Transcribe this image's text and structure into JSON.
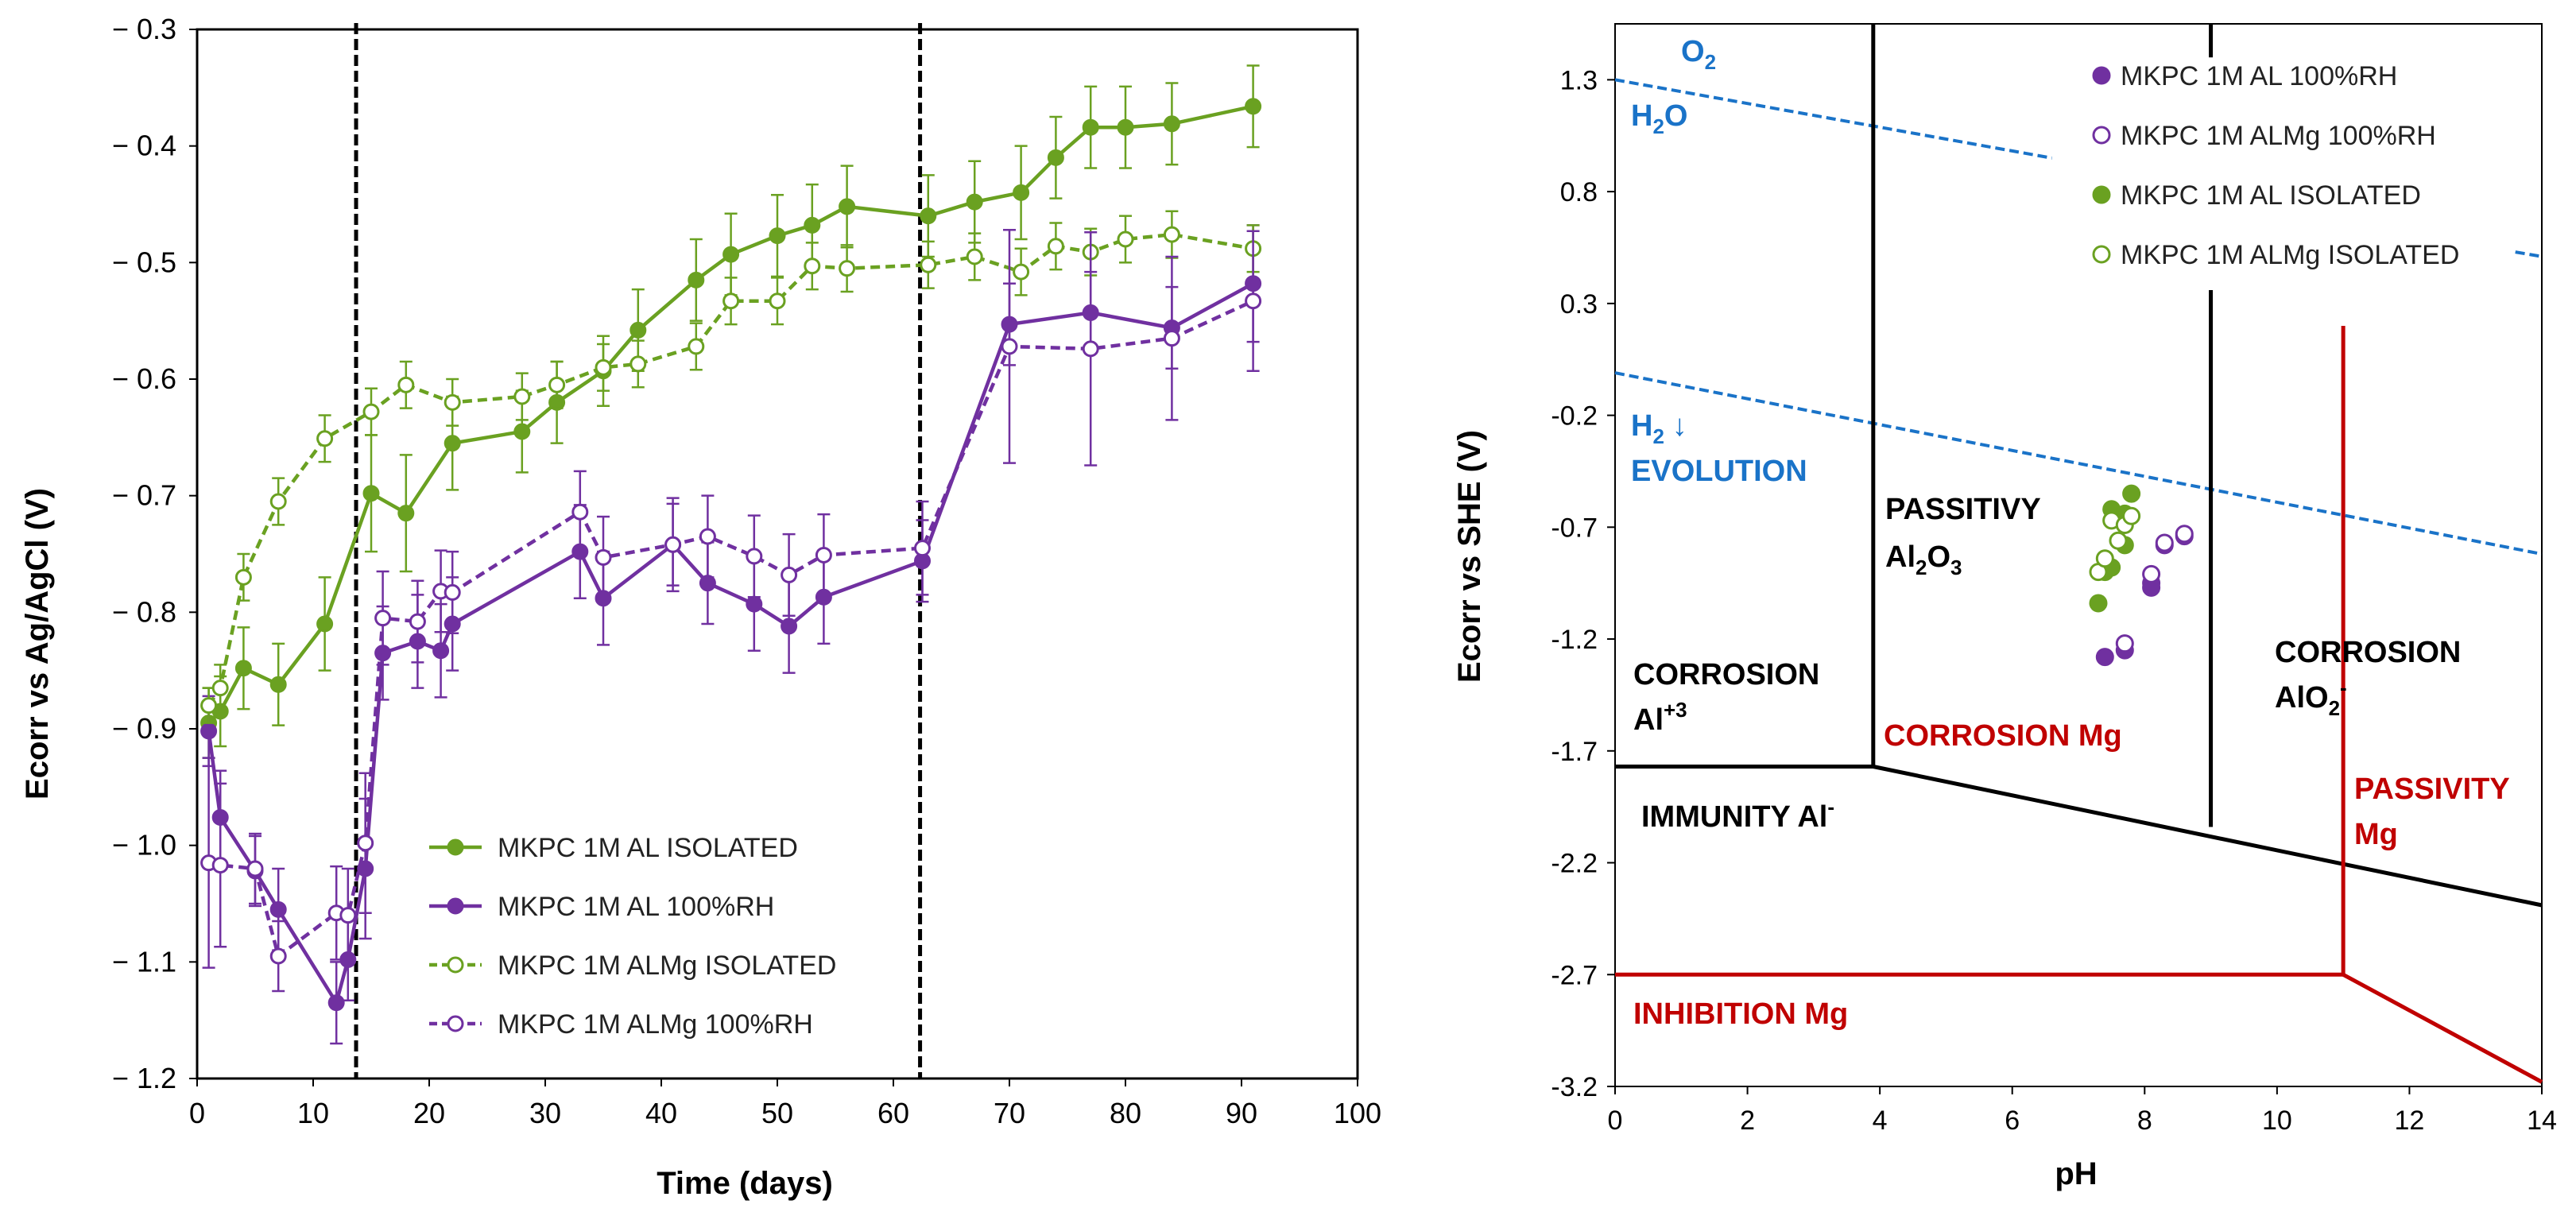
{
  "chart_data": [
    {
      "type": "line",
      "xlabel": "Time (days)",
      "ylabel": "Ecorr vs Ag/AgCl (V)",
      "xlim": [
        0,
        100
      ],
      "ylim": [
        -1.2,
        -0.3
      ],
      "x_ticks": [
        0,
        10,
        20,
        30,
        40,
        50,
        60,
        70,
        80,
        90,
        100
      ],
      "x_tick_labels": [
        "0",
        "10",
        "20",
        "30",
        "40",
        "50",
        "60",
        "70",
        "80",
        "90",
        "100"
      ],
      "y_ticks": [
        -0.3,
        -0.4,
        -0.5,
        -0.6,
        -0.7,
        -0.8,
        -0.9,
        -1.0,
        -1.1,
        -1.2
      ],
      "y_tick_labels": [
        "− 0.3",
        "− 0.4",
        "− 0.5",
        "− 0.6",
        "− 0.7",
        "− 0.8",
        "− 0.9",
        "− 1.0",
        "− 1.1",
        "− 1.2"
      ],
      "vertical_dashed_lines": [
        13.7,
        62.3
      ],
      "series": [
        {
          "name": "MKPC 1M AL ISOLATED",
          "color": "#6aa121",
          "marker": "filled",
          "line": "solid",
          "x": [
            1,
            2,
            4,
            7,
            11,
            15,
            18,
            22,
            28,
            31,
            35,
            38,
            43,
            46,
            50,
            53,
            56,
            63,
            67,
            71,
            74,
            77,
            80,
            84,
            91
          ],
          "y": [
            -0.895,
            -0.885,
            -0.848,
            -0.862,
            -0.81,
            -0.698,
            -0.715,
            -0.655,
            -0.645,
            -0.62,
            -0.593,
            -0.558,
            -0.515,
            -0.493,
            -0.477,
            -0.468,
            -0.452,
            -0.46,
            -0.448,
            -0.44,
            -0.41,
            -0.384,
            -0.384,
            -0.381,
            -0.366
          ],
          "err": [
            0.03,
            0.03,
            0.035,
            0.035,
            0.04,
            0.05,
            0.05,
            0.04,
            0.035,
            0.035,
            0.03,
            0.035,
            0.035,
            0.035,
            0.035,
            0.035,
            0.035,
            0.035,
            0.035,
            0.04,
            0.035,
            0.035,
            0.035,
            0.035,
            0.035
          ]
        },
        {
          "name": "MKPC 1M AL 100%RH",
          "color": "#7030a0",
          "marker": "filled",
          "line": "solid",
          "x": [
            1,
            2,
            5,
            7,
            12,
            13,
            14.5,
            16,
            19,
            21,
            22,
            33,
            35,
            41,
            44,
            48,
            51,
            54,
            62.5,
            70,
            77,
            84,
            91
          ],
          "y": [
            -0.902,
            -0.976,
            -1.022,
            -1.055,
            -1.135,
            -1.098,
            -1.02,
            -0.835,
            -0.825,
            -0.833,
            -0.81,
            -0.748,
            -0.788,
            -0.742,
            -0.775,
            -0.793,
            -0.812,
            -0.787,
            -0.756,
            -0.553,
            -0.543,
            -0.556,
            -0.518
          ],
          "err": [
            0.03,
            0.04,
            0.03,
            0.035,
            0.035,
            0.035,
            0.06,
            0.04,
            0.04,
            0.04,
            0.04,
            0.04,
            0.04,
            0.04,
            0.035,
            0.04,
            0.04,
            0.04,
            0.035,
            0.035,
            0.035,
            0.035,
            0.05
          ]
        },
        {
          "name": "MKPC 1M ALMg ISOLATED",
          "color": "#6aa121",
          "marker": "open",
          "line": "dashed",
          "x": [
            1,
            2,
            4,
            7,
            11,
            15,
            18,
            22,
            28,
            31,
            35,
            38,
            43,
            46,
            50,
            53,
            56,
            63,
            67,
            71,
            74,
            77,
            80,
            84,
            91
          ],
          "y": [
            -0.88,
            -0.865,
            -0.77,
            -0.705,
            -0.651,
            -0.628,
            -0.605,
            -0.62,
            -0.615,
            -0.605,
            -0.59,
            -0.587,
            -0.572,
            -0.533,
            -0.533,
            -0.503,
            -0.505,
            -0.502,
            -0.495,
            -0.508,
            -0.486,
            -0.491,
            -0.48,
            -0.476,
            -0.488
          ],
          "err": [
            0.015,
            0.02,
            0.02,
            0.02,
            0.02,
            0.02,
            0.02,
            0.02,
            0.02,
            0.02,
            0.02,
            0.02,
            0.02,
            0.02,
            0.02,
            0.02,
            0.02,
            0.02,
            0.02,
            0.02,
            0.02,
            0.02,
            0.02,
            0.02,
            0.02
          ]
        },
        {
          "name": "MKPC 1M ALMg 100%RH",
          "color": "#7030a0",
          "marker": "open",
          "line": "dashed",
          "x": [
            1,
            2,
            5,
            7,
            12,
            13,
            14.5,
            16,
            19,
            21,
            22,
            33,
            35,
            41,
            44,
            48,
            51,
            54,
            62.5,
            70,
            77,
            84,
            91
          ],
          "y": [
            -1.015,
            -1.017,
            -1.02,
            -1.095,
            -1.058,
            -1.06,
            -0.998,
            -0.805,
            -0.808,
            -0.782,
            -0.783,
            -0.714,
            -0.753,
            -0.742,
            -0.735,
            -0.752,
            -0.768,
            -0.751,
            -0.745,
            -0.572,
            -0.574,
            -0.565,
            -0.533
          ],
          "err": [
            0.09,
            0.07,
            0.03,
            0.03,
            0.04,
            0.04,
            0.06,
            0.04,
            0.035,
            0.035,
            0.035,
            0.035,
            0.035,
            0.035,
            0.035,
            0.035,
            0.035,
            0.035,
            0.04,
            0.1,
            0.1,
            0.07,
            0.06
          ]
        }
      ],
      "legend": {
        "position": "bottom-center",
        "entries": [
          "MKPC 1M AL ISOLATED",
          "MKPC 1M AL 100%RH",
          "MKPC 1M ALMg ISOLATED",
          "MKPC 1M ALMg 100%RH"
        ]
      }
    },
    {
      "type": "scatter",
      "xlabel": "pH",
      "ylabel": "Ecorr vs SHE (V)",
      "xlim": [
        0,
        14
      ],
      "ylim": [
        -3.2,
        1.55
      ],
      "x_ticks": [
        0,
        2,
        4,
        6,
        8,
        10,
        12,
        14
      ],
      "x_tick_labels": [
        "0",
        "2",
        "4",
        "6",
        "8",
        "10",
        "12",
        "14"
      ],
      "y_ticks": [
        1.3,
        0.8,
        0.3,
        -0.2,
        -0.7,
        -1.2,
        -1.7,
        -2.2,
        -2.7,
        -3.2
      ],
      "y_tick_labels": [
        "1.3",
        "0.8",
        "0.3",
        "-0.2",
        "-0.7",
        "-1.2",
        "-1.7",
        "-2.2",
        "-2.7",
        "-3.2"
      ],
      "boundary_lines": [
        {
          "name": "oxygen-line",
          "color": "#1a73c8",
          "style": "dashed",
          "points": [
            [
              0,
              1.3
            ],
            [
              6.6,
              0.95
            ]
          ]
        },
        {
          "name": "oxygen-line-end",
          "color": "#1a73c8",
          "style": "dashed",
          "points": [
            [
              13.6,
              0.53
            ],
            [
              14,
              0.51
            ]
          ]
        },
        {
          "name": "hydrogen-line",
          "color": "#1a73c8",
          "style": "dashed",
          "points": [
            [
              0,
              -0.01
            ],
            [
              14,
              -0.82
            ]
          ]
        },
        {
          "name": "al-vertical-ph4",
          "color": "#000000",
          "style": "solid",
          "points": [
            [
              3.9,
              -1.77
            ],
            [
              3.9,
              1.55
            ]
          ]
        },
        {
          "name": "al-vertical-ph9-top",
          "color": "#000000",
          "style": "solid",
          "points": [
            [
              9,
              1.55
            ],
            [
              9,
              1.4
            ]
          ]
        },
        {
          "name": "al-vertical-ph9",
          "color": "#000000",
          "style": "solid",
          "points": [
            [
              9,
              0.36
            ],
            [
              9,
              -2.04
            ]
          ]
        },
        {
          "name": "al-immunity-top",
          "color": "#000000",
          "style": "solid",
          "points": [
            [
              0,
              -1.77
            ],
            [
              3.9,
              -1.77
            ]
          ]
        },
        {
          "name": "al-immunity-slope",
          "color": "#000000",
          "style": "solid",
          "points": [
            [
              3.9,
              -1.77
            ],
            [
              14,
              -2.39
            ]
          ]
        },
        {
          "name": "mg-vertical-ph11",
          "color": "#c00000",
          "style": "solid",
          "points": [
            [
              11,
              0.2
            ],
            [
              11,
              -2.7
            ]
          ]
        },
        {
          "name": "mg-inhibition-top",
          "color": "#c00000",
          "style": "solid",
          "points": [
            [
              0,
              -2.7
            ],
            [
              11,
              -2.7
            ]
          ]
        },
        {
          "name": "mg-inhibition-slope",
          "color": "#c00000",
          "style": "solid",
          "points": [
            [
              11,
              -2.7
            ],
            [
              14,
              -3.18
            ]
          ]
        }
      ],
      "points": [
        {
          "series": "MKPC 1M AL 100%RH",
          "color": "#7030a0",
          "marker": "filled",
          "x": [
            7.4,
            7.7,
            8.1,
            8.1,
            8.3,
            8.6
          ],
          "y": [
            -1.28,
            -1.25,
            -0.95,
            -0.97,
            -0.78,
            -0.74
          ]
        },
        {
          "series": "MKPC 1M ALMg 100%RH",
          "color": "#7030a0",
          "marker": "open",
          "x": [
            7.7,
            8.1,
            8.3,
            8.6
          ],
          "y": [
            -1.22,
            -0.91,
            -0.77,
            -0.73
          ]
        },
        {
          "series": "MKPC 1M AL ISOLATED",
          "color": "#6aa121",
          "marker": "filled",
          "x": [
            7.3,
            7.4,
            7.5,
            7.5,
            7.7,
            7.7,
            7.8
          ],
          "y": [
            -1.04,
            -0.9,
            -0.88,
            -0.62,
            -0.64,
            -0.78,
            -0.55
          ]
        },
        {
          "series": "MKPC 1M ALMg ISOLATED",
          "color": "#6aa121",
          "marker": "open",
          "x": [
            7.3,
            7.4,
            7.5,
            7.6,
            7.7,
            7.8
          ],
          "y": [
            -0.9,
            -0.84,
            -0.67,
            -0.76,
            -0.69,
            -0.65
          ]
        }
      ],
      "region_labels": {
        "o2": "O",
        "o2_sub": "2",
        "h2o_main": "H",
        "h2o_sub": "2",
        "h2o_end": "O",
        "h2_main": "H",
        "h2_sub": "2",
        "h2_arrow": "↓",
        "evolution": "EVOLUTION",
        "passivity_line1": "PASSITIVY",
        "passivity_al": "Al",
        "passivity_sub2": "2",
        "passivity_o": "O",
        "passivity_sub3": "3",
        "corrosion_al_line1": "CORROSION",
        "corrosion_al_line2": "Al",
        "corrosion_al_sup": "+3",
        "corrosion_mg": "CORROSION Mg",
        "immunity": "IMMUNITY Al",
        "immunity_sup": "-",
        "corrosion_alo2_line1": "CORROSION",
        "corrosion_alo2_line2": "AlO",
        "corrosion_alo2_sub": "2",
        "corrosion_alo2_sup": "-",
        "passivity_mg_line1": "PASSIVITY",
        "passivity_mg_line2": "Mg",
        "inhibition_mg": "INHIBITION Mg"
      },
      "legend": {
        "position": "top-right",
        "entries": [
          "MKPC 1M AL 100%RH",
          "MKPC 1M ALMg 100%RH",
          "MKPC 1M AL ISOLATED",
          "MKPC 1M ALMg ISOLATED"
        ]
      }
    }
  ]
}
